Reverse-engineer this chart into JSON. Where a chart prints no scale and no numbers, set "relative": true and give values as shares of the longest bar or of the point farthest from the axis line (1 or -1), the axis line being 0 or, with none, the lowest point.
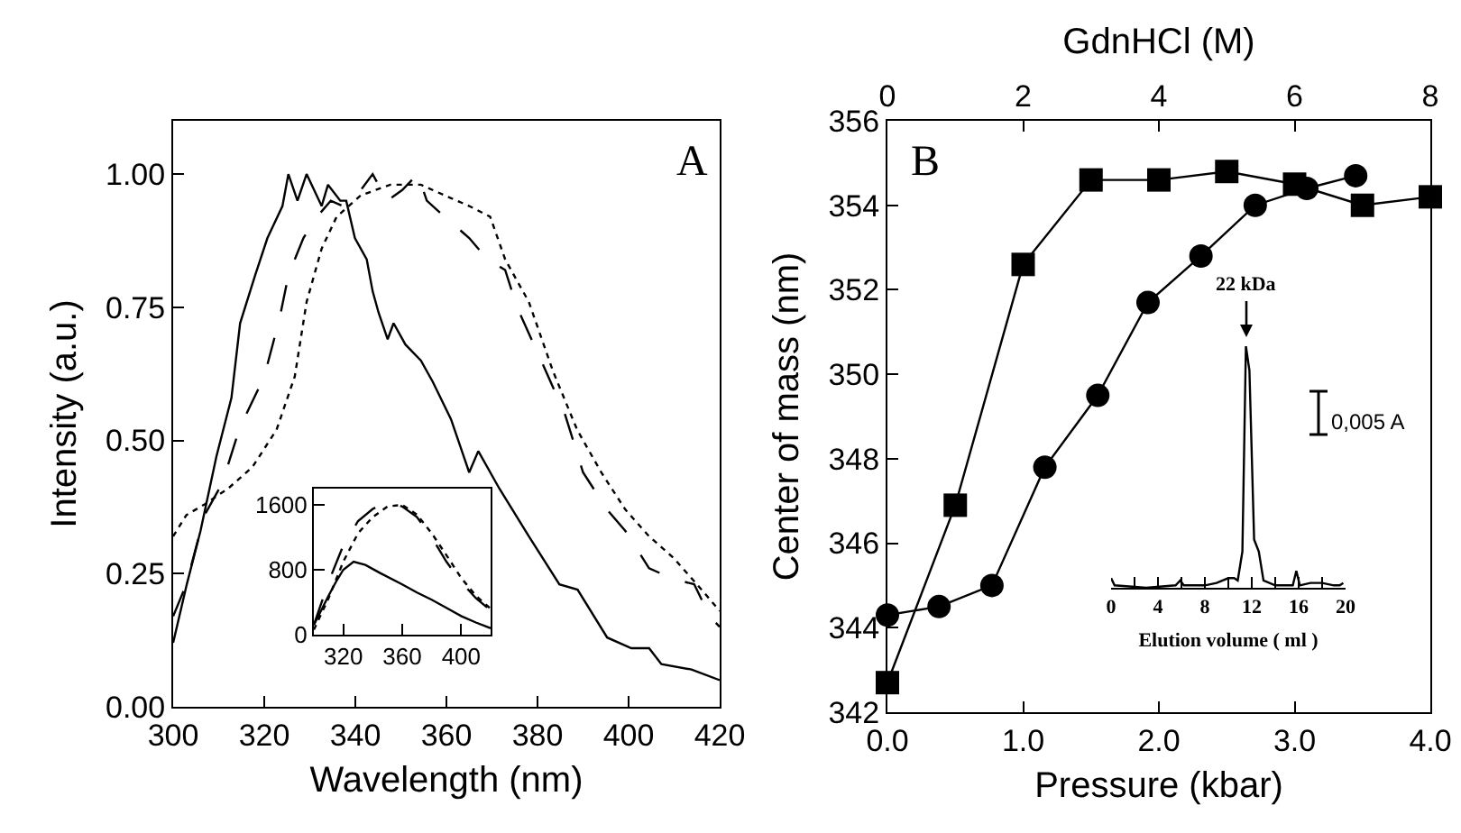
{
  "chart_data": [
    {
      "type": "line",
      "xlabel": "Wavelength (nm)",
      "ylabel": "Intensity (a.u.)",
      "annotations": [
        "A"
      ],
      "xlim": [
        300,
        420
      ],
      "xticks": [
        300,
        320,
        340,
        360,
        380,
        400,
        420
      ],
      "ylim": [
        0,
        1.1
      ],
      "yticks": [
        {
          "value": 0,
          "label": "0.00"
        },
        {
          "value": 0.25,
          "label": "0.25"
        },
        {
          "value": 0.5,
          "label": "0.50"
        },
        {
          "value": 0.75,
          "label": "0.75"
        },
        {
          "value": 1,
          "label": "1.00"
        }
      ],
      "grid": false,
      "marker": "none",
      "series": [
        {
          "color": "#000000",
          "line_style": "solid",
          "x": [
            300,
            303,
            306,
            309.5,
            312.8,
            314.7,
            318,
            320.7,
            324,
            325.3,
            327.3,
            329.3,
            332.6,
            334,
            336.7,
            338,
            339.9,
            342.5,
            343.8,
            345.1,
            347.1,
            348.4,
            351,
            354.4,
            357,
            361,
            365,
            367,
            371.6,
            378.1,
            384.8,
            388.8,
            395.3,
            400.6,
            404.5,
            407.2,
            413.8,
            420
          ],
          "values": [
            0.12,
            0.23,
            0.33,
            0.47,
            0.58,
            0.72,
            0.81,
            0.88,
            0.94,
            1.0,
            0.95,
            1.0,
            0.94,
            0.98,
            0.95,
            0.95,
            0.88,
            0.84,
            0.78,
            0.74,
            0.69,
            0.72,
            0.68,
            0.65,
            0.61,
            0.54,
            0.44,
            0.48,
            0.41,
            0.32,
            0.23,
            0.22,
            0.13,
            0.11,
            0.11,
            0.08,
            0.07,
            0.05
          ]
        },
        {
          "color": "#000000",
          "line_style": "dashed",
          "x": [
            300,
            302.9,
            306.9,
            310.8,
            314.1,
            316.1,
            320,
            323.4,
            325.3,
            328.6,
            331.6,
            334.6,
            337.2,
            341.2,
            343.8,
            347,
            350.3,
            353.7,
            355.7,
            359.6,
            365,
            369,
            372.9,
            375.5,
            380.8,
            386,
            390,
            395.3,
            399.3,
            404.5,
            409.8,
            414.4,
            417.8,
            420
          ],
          "values": [
            0.17,
            0.23,
            0.36,
            0.42,
            0.51,
            0.55,
            0.62,
            0.73,
            0.81,
            0.88,
            0.92,
            0.95,
            0.94,
            0.97,
            1.0,
            0.95,
            0.97,
            1.0,
            0.95,
            0.92,
            0.88,
            0.84,
            0.82,
            0.75,
            0.65,
            0.55,
            0.44,
            0.37,
            0.33,
            0.26,
            0.24,
            0.23,
            0.17,
            0.15
          ]
        },
        {
          "color": "#000000",
          "line_style": "dotted",
          "x": [
            300,
            302.9,
            306.9,
            312.1,
            317.4,
            322.7,
            326.7,
            329.3,
            332.6,
            335.9,
            341.2,
            347.7,
            354.4,
            359.6,
            365,
            369.6,
            372.9,
            378.1,
            383.4,
            388.7,
            394,
            399.3,
            404.5,
            409.8,
            415,
            420
          ],
          "values": [
            0.32,
            0.36,
            0.38,
            0.41,
            0.45,
            0.52,
            0.62,
            0.76,
            0.86,
            0.92,
            0.96,
            0.98,
            0.98,
            0.96,
            0.94,
            0.92,
            0.84,
            0.76,
            0.63,
            0.52,
            0.44,
            0.37,
            0.32,
            0.28,
            0.23,
            0.18
          ]
        }
      ]
    },
    {
      "type": "line",
      "xlim": [
        300,
        420
      ],
      "xticks": [
        320,
        360,
        400
      ],
      "ylim": [
        0,
        1800
      ],
      "yticks": [
        0,
        800,
        1600
      ],
      "grid": false,
      "marker": "none",
      "series": [
        {
          "color": "#000000",
          "line_style": "solid",
          "x": [
            300,
            305,
            310,
            315,
            320,
            327,
            335,
            345,
            360,
            370,
            380,
            390,
            400,
            410,
            420
          ],
          "values": [
            120,
            300,
            480,
            650,
            800,
            900,
            860,
            760,
            620,
            520,
            430,
            330,
            230,
            150,
            80
          ]
        },
        {
          "color": "#000000",
          "line_style": "dashed",
          "x": [
            300,
            310,
            320,
            330,
            340,
            350,
            360,
            370,
            380,
            390,
            400,
            410,
            420
          ],
          "values": [
            120,
            650,
            1100,
            1400,
            1550,
            1640,
            1580,
            1450,
            1200,
            900,
            650,
            450,
            300
          ]
        },
        {
          "color": "#000000",
          "line_style": "dotted",
          "x": [
            300,
            310,
            320,
            330,
            340,
            350,
            360,
            370,
            380,
            390,
            400,
            410,
            420
          ],
          "values": [
            60,
            450,
            900,
            1250,
            1450,
            1580,
            1600,
            1480,
            1250,
            980,
            700,
            480,
            320
          ]
        }
      ]
    },
    {
      "type": "line",
      "xlabel": "Pressure (kbar)",
      "x2label": "GdnHCl (M)",
      "ylabel": "Center of mass (nm)",
      "annotations": [
        "B"
      ],
      "xlim": [
        0,
        4
      ],
      "xticks": [
        {
          "value": 0,
          "label": "0.0"
        },
        {
          "value": 1,
          "label": "1.0"
        },
        {
          "value": 2,
          "label": "2.0"
        },
        {
          "value": 3,
          "label": "3.0"
        },
        {
          "value": 4,
          "label": "4.0"
        }
      ],
      "x2lim": [
        0,
        8
      ],
      "x2ticks": [
        0,
        2,
        4,
        6,
        8
      ],
      "ylim": [
        342,
        356
      ],
      "yticks": [
        342,
        344,
        346,
        348,
        350,
        352,
        354,
        356
      ],
      "grid": false,
      "line_style": "solid",
      "series": [
        {
          "color": "#000000",
          "marker": "square",
          "axis": "x2",
          "x": [
            0,
            1,
            2,
            3,
            4,
            5,
            6,
            7,
            8
          ],
          "values": [
            342.7,
            346.9,
            352.6,
            354.6,
            354.6,
            354.8,
            354.5,
            354.0,
            354.2
          ]
        },
        {
          "color": "#000000",
          "marker": "circle",
          "x": [
            0,
            0.38,
            0.77,
            1.16,
            1.55,
            1.92,
            2.31,
            2.71,
            3.09,
            3.45
          ],
          "values": [
            344.3,
            344.5,
            345.0,
            347.8,
            349.5,
            351.7,
            352.8,
            354.0,
            354.4,
            354.7
          ]
        }
      ]
    },
    {
      "type": "line",
      "relative": true,
      "xlabel": "Elution volume ( ml )",
      "annotations": [
        {
          "text": "22 kDa",
          "x": 11.5,
          "y": 1
        },
        "0,005 A"
      ],
      "xlim": [
        0,
        20
      ],
      "xticks": [
        0,
        {
          "value": 2,
          "label": null
        },
        4,
        {
          "value": 6,
          "label": null
        },
        8,
        {
          "value": 10,
          "label": null
        },
        12,
        {
          "value": 14,
          "label": null
        },
        16,
        {
          "value": 18,
          "label": null
        },
        20
      ],
      "grid": false,
      "marker": "none",
      "series": [
        {
          "color": "#000000",
          "line_style": "solid",
          "x": [
            0,
            0.3,
            3,
            5.5,
            5.9,
            6.2,
            8,
            9,
            10,
            10.5,
            10.8,
            11.2,
            11.5,
            11.8,
            12.2,
            12.6,
            13,
            14,
            15.5,
            15.8,
            16.1,
            17,
            18,
            19,
            19.5,
            19.8
          ],
          "values": [
            0.04,
            0.01,
            0,
            0.01,
            0.03,
            0.01,
            0.01,
            0.02,
            0.04,
            0.04,
            0.03,
            0.15,
            1.0,
            0.9,
            0.2,
            0.15,
            0.03,
            0.01,
            0.01,
            0.07,
            0.01,
            0.02,
            0.02,
            0.01,
            0.01,
            0.02
          ]
        }
      ]
    }
  ]
}
